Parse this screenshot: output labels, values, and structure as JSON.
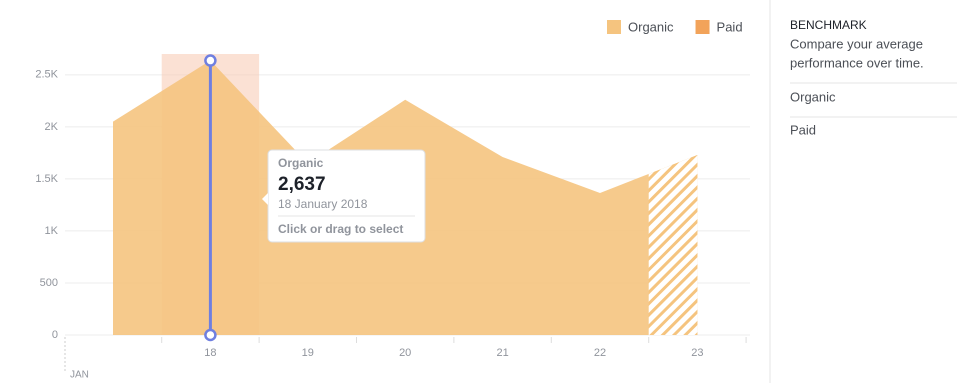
{
  "chart_data": {
    "type": "area",
    "categories": [
      null,
      "18",
      "19",
      "20",
      "21",
      "22",
      "23"
    ],
    "month_label": "JAN",
    "series": [
      {
        "name": "Organic",
        "color": "#f5c47f",
        "values": [
          2050,
          2637,
          1650,
          2260,
          1710,
          1365,
          1730
        ]
      }
    ],
    "legend": [
      {
        "name": "Organic",
        "color": "#f5c47f"
      },
      {
        "name": "Paid",
        "color": "#f2a35a"
      }
    ],
    "ylim": [
      0,
      2700
    ],
    "yticks": [
      0,
      500,
      {
        "value": 1000,
        "label": "1K"
      },
      {
        "value": 1500,
        "label": "1.5K"
      },
      {
        "value": 2000,
        "label": "2K"
      },
      {
        "value": 2500,
        "label": "2.5K"
      }
    ],
    "grid": true,
    "tooltip": {
      "series": "Organic",
      "value": "2,637",
      "date": "18 January 2018",
      "hint": "Click or drag to select"
    }
  },
  "sidebar": {
    "title": "BENCHMARK",
    "description": [
      "Compare your average",
      "performance over time."
    ],
    "items": [
      "Organic",
      "Paid"
    ]
  }
}
